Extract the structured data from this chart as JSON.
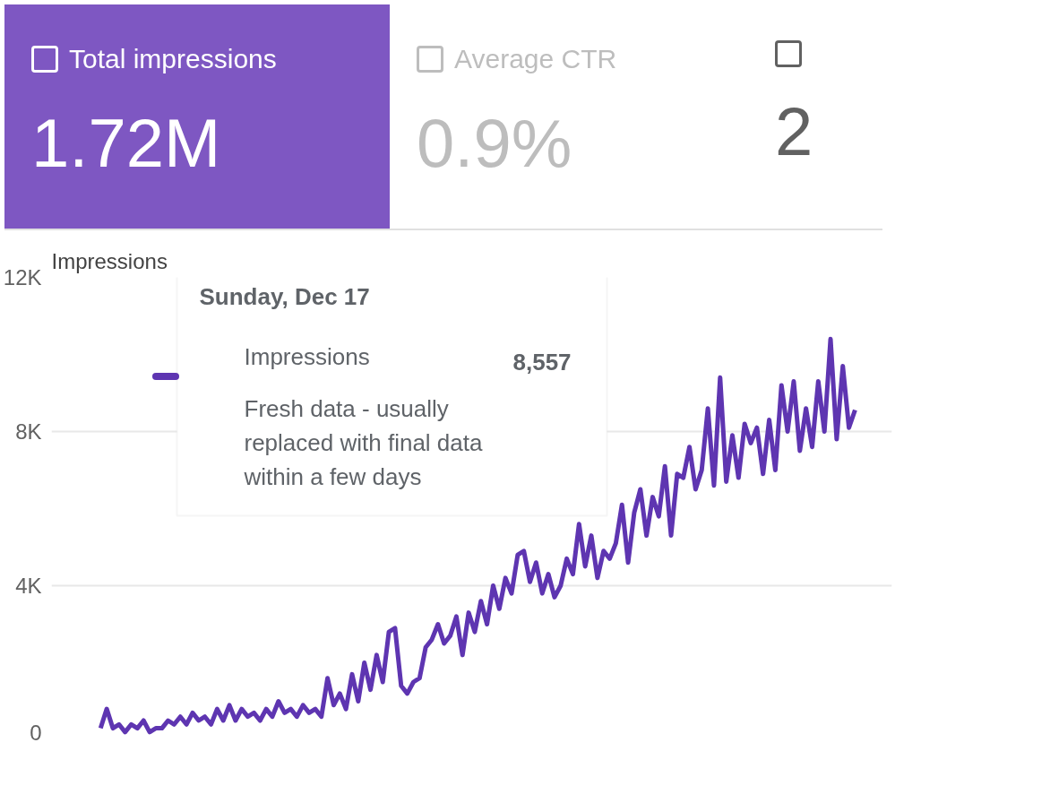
{
  "chart_data": {
    "type": "line",
    "ylabel": "Impressions",
    "annotations": [
      "Total impressions",
      "1.72M",
      "Average CTR",
      "0.9%",
      "2",
      "Sunday, Dec 17",
      "Impressions",
      "8,557",
      "Fresh data - usually replaced with final data within a few days"
    ],
    "categories": [
      null,
      null,
      null,
      null,
      null,
      null,
      null,
      null,
      null,
      null,
      null,
      null,
      null,
      null,
      null,
      null,
      null,
      null,
      null,
      null,
      null,
      null,
      null,
      null,
      null,
      null,
      null,
      null,
      null,
      null,
      null,
      null,
      null,
      null,
      null,
      null,
      null,
      null,
      null,
      null,
      null,
      null,
      null,
      null,
      null,
      null,
      null,
      null,
      null,
      null,
      null,
      null,
      null,
      null,
      null,
      null,
      null,
      null,
      null,
      null,
      null,
      null,
      null,
      null,
      null,
      null,
      null,
      null,
      null,
      null,
      null,
      null,
      null,
      null,
      null,
      null,
      null,
      null,
      null,
      null,
      null,
      null,
      null,
      null,
      null,
      null,
      null,
      null,
      null,
      null,
      null,
      null,
      null,
      null,
      null,
      null,
      null,
      null,
      null,
      null,
      null,
      null,
      null,
      null,
      null,
      null,
      null,
      null,
      null,
      null,
      null,
      null,
      null,
      null,
      null,
      null,
      null,
      null,
      null,
      null,
      null,
      null,
      null,
      null
    ],
    "series": [
      {
        "color": "#5e35b1",
        "values": [
          300,
          800,
          300,
          400,
          200,
          400,
          300,
          500,
          200,
          300,
          300,
          500,
          400,
          600,
          400,
          700,
          500,
          600,
          400,
          800,
          500,
          900,
          500,
          800,
          600,
          700,
          500,
          800,
          600,
          1000,
          700,
          800,
          600,
          900,
          700,
          800,
          600,
          1600,
          900,
          1200,
          800,
          1700,
          1000,
          2000,
          1300,
          2200,
          1500,
          2800,
          2900,
          1400,
          1200,
          1500,
          1600,
          2400,
          2600,
          3000,
          2500,
          2700,
          3200,
          2200,
          3300,
          2800,
          3600,
          3000,
          4000,
          3400,
          4200,
          3800,
          4800,
          4900,
          4100,
          4600,
          3800,
          4300,
          3700,
          4000,
          4700,
          4300,
          5600,
          4500,
          5300,
          4200,
          4900,
          4700,
          5100,
          6100,
          4600,
          5900,
          6500,
          5300,
          6300,
          5800,
          7100,
          5300,
          6900,
          6800,
          7600,
          6500,
          7000,
          8600,
          6600,
          9400,
          6700,
          7900,
          6800,
          8200,
          7700,
          8100,
          6900,
          8300,
          7000,
          9200,
          8000,
          9300,
          7500,
          8600,
          7600,
          9300,
          8000,
          10400,
          7800,
          9700,
          8100,
          8557
        ]
      }
    ],
    "ylim": [
      0,
      12000
    ],
    "yticks": [
      {
        "value": 0,
        "label": "0"
      },
      {
        "value": 4000,
        "label": "4K"
      },
      {
        "value": 8000,
        "label": "8K"
      },
      {
        "value": 12000,
        "label": "12K"
      }
    ],
    "grid": "y",
    "line_style": "solid"
  }
}
